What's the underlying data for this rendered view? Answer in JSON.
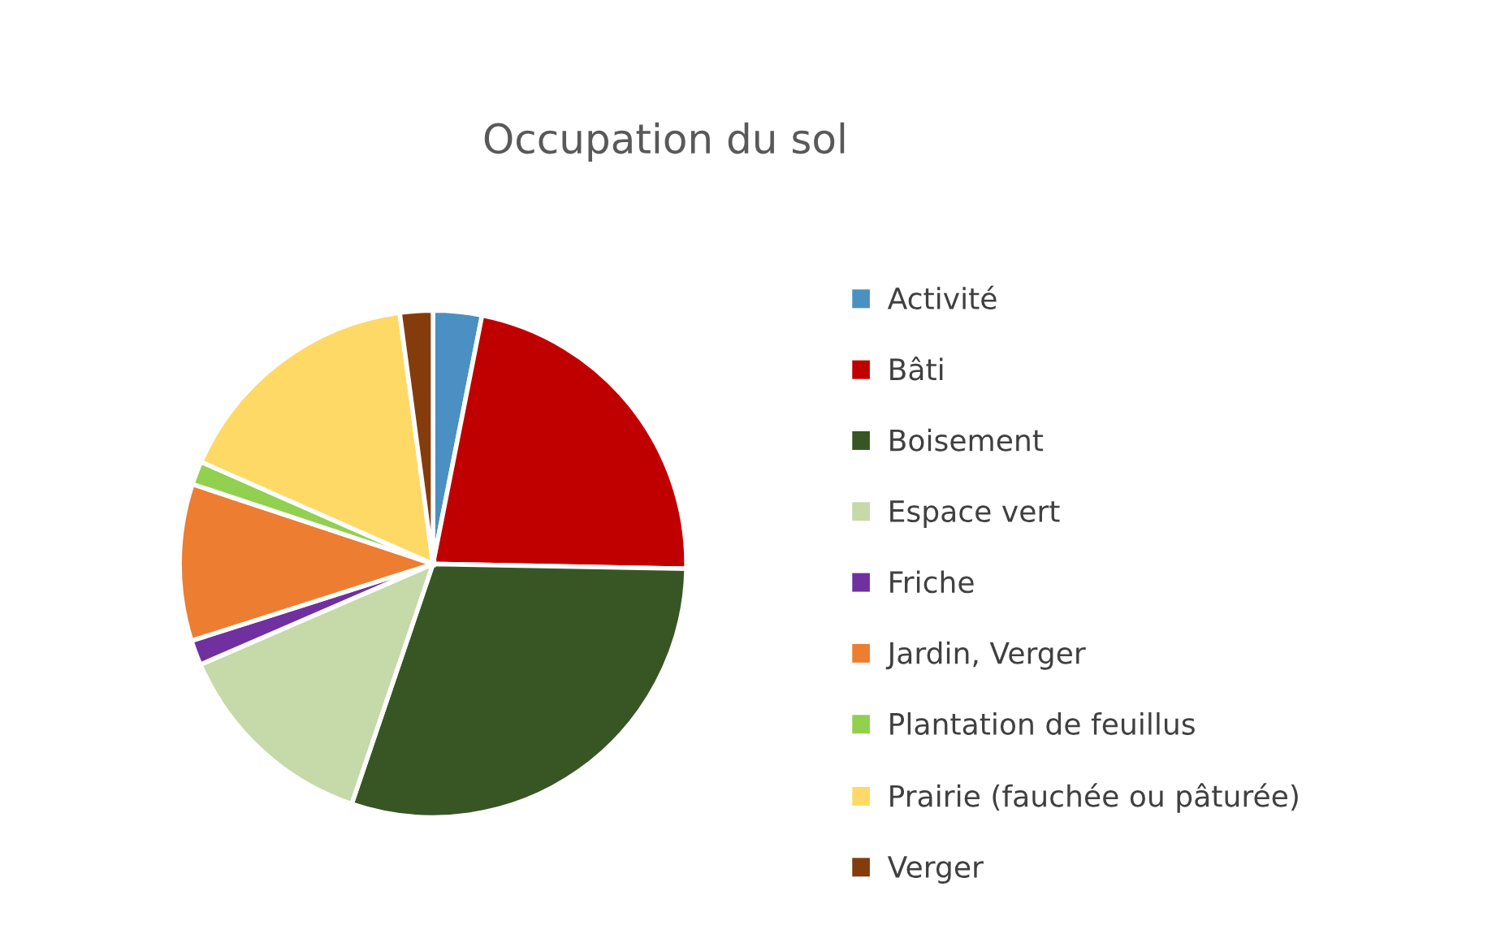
{
  "chart_data": {
    "type": "pie",
    "title": "Occupation du sol",
    "categories": [
      "Activité",
      "Bâti",
      "Boisement",
      "Espace vert",
      "Friche",
      "Jardin, Verger",
      "Plantation de feuillus",
      "Prairie (fauchée ou pâturée)",
      "Verger"
    ],
    "values": [
      3.1,
      22.2,
      29.9,
      13.3,
      1.6,
      10.0,
      1.5,
      16.3,
      2.1
    ],
    "colors": [
      "#4a90c2",
      "#c00000",
      "#375623",
      "#c5d9a9",
      "#7030a0",
      "#ed7d31",
      "#92d050",
      "#ffd966",
      "#843c0c"
    ],
    "legend": "right"
  }
}
